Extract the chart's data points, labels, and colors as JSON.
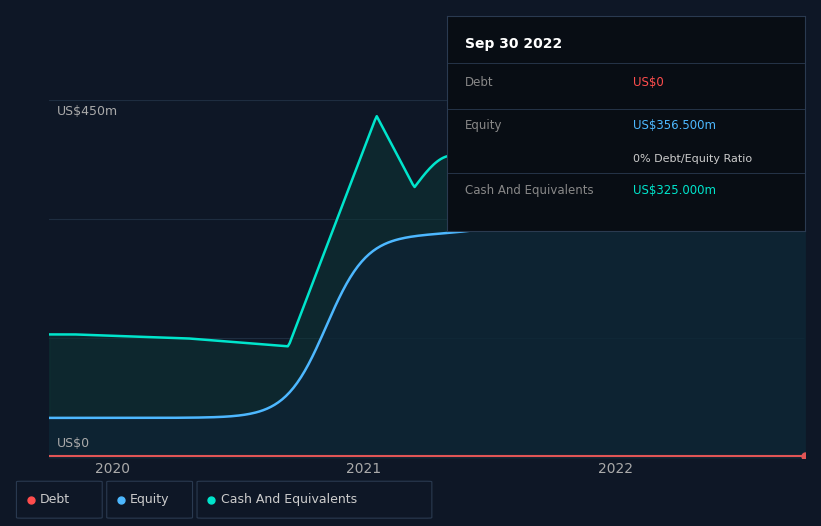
{
  "bg_color": "#0e1726",
  "tooltip": {
    "date": "Sep 30 2022",
    "debt_label": "Debt",
    "debt_value": "US$0",
    "equity_label": "Equity",
    "equity_value": "US$356.500m",
    "ratio_value": "0% Debt/Equity Ratio",
    "cash_label": "Cash And Equivalents",
    "cash_value": "US$325.000m"
  },
  "y_label_top": "US$450m",
  "y_label_bottom": "US$0",
  "x_ticks": [
    2020,
    2021,
    2022
  ],
  "legend": [
    {
      "label": "Debt",
      "color": "#ff4d4d"
    },
    {
      "label": "Equity",
      "color": "#4db8ff"
    },
    {
      "label": "Cash And Equivalents",
      "color": "#00e5cc"
    }
  ],
  "debt_color": "#e05555",
  "equity_color": "#4db8ff",
  "cash_color": "#00e5cc",
  "grid_color": "#1e2d40",
  "tooltip_bg": "#080d14",
  "tooltip_border": "#2a3a50",
  "debt_color_value": "#ff4d4d",
  "equity_color_value": "#4db8ff",
  "cash_color_value": "#00e5cc"
}
